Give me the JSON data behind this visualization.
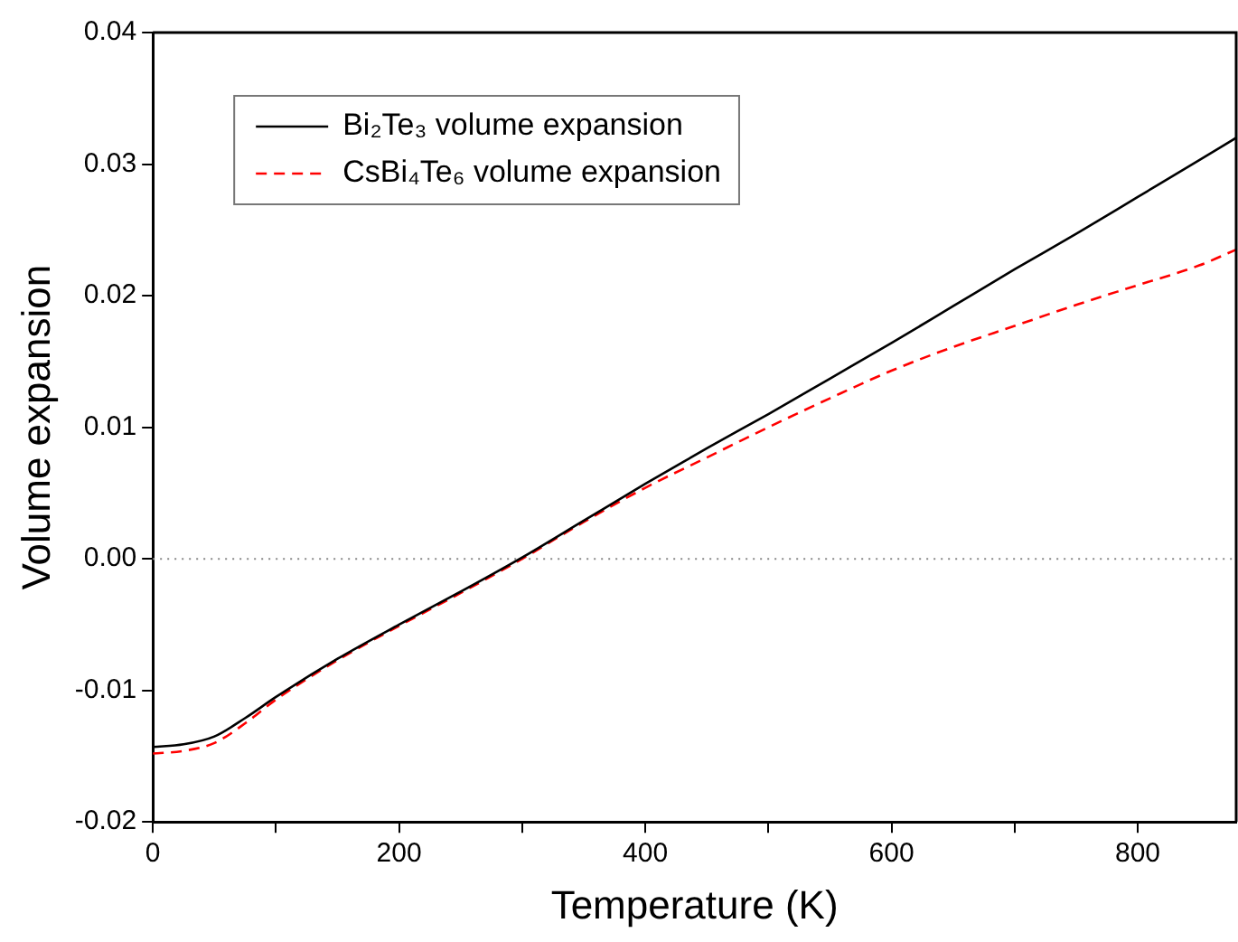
{
  "chart_data": {
    "type": "line",
    "xlabel": "Temperature (K)",
    "ylabel": "Volume expansion",
    "xlim": [
      0,
      880
    ],
    "ylim": [
      -0.02,
      0.04
    ],
    "xticks": [
      0,
      {
        "value": 100,
        "label": null
      },
      200,
      {
        "value": 300,
        "label": null
      },
      400,
      {
        "value": 500,
        "label": null
      },
      600,
      {
        "value": 700,
        "label": null
      },
      800
    ],
    "yticks": [
      {
        "value": -0.02,
        "label": "-0.02"
      },
      {
        "value": -0.01,
        "label": "-0.01"
      },
      {
        "value": 0,
        "label": "0.00"
      },
      {
        "value": 0.01,
        "label": "0.01"
      },
      {
        "value": 0.02,
        "label": "0.02"
      },
      {
        "value": 0.03,
        "label": "0.03"
      },
      {
        "value": 0.04,
        "label": "0.04"
      }
    ],
    "x": [
      0,
      25,
      50,
      75,
      100,
      150,
      200,
      250,
      300,
      350,
      400,
      450,
      500,
      550,
      600,
      650,
      700,
      750,
      800,
      850,
      880
    ],
    "series": [
      {
        "name": "Bi₂Te₃ volume expansion",
        "color": "#000000",
        "line_style": "solid",
        "values": [
          -0.0143,
          -0.0141,
          -0.0135,
          -0.0121,
          -0.0105,
          -0.0076,
          -0.005,
          -0.0025,
          0.0001,
          0.0029,
          0.0057,
          0.0084,
          0.011,
          0.0137,
          0.0164,
          0.0192,
          0.022,
          0.0247,
          0.0275,
          0.0303,
          0.032
        ]
      },
      {
        "name": "CsBi₄Te₆ volume expansion",
        "color": "#ff0000",
        "line_style": "dashed",
        "values": [
          -0.0148,
          -0.0146,
          -0.014,
          -0.0125,
          -0.0107,
          -0.0077,
          -0.0051,
          -0.0026,
          0.0,
          0.0028,
          0.0054,
          0.0077,
          0.01,
          0.0122,
          0.0143,
          0.0161,
          0.0177,
          0.0193,
          0.0208,
          0.0223,
          0.0235
        ]
      }
    ],
    "ref_lines": [
      {
        "axis": "y",
        "value": 0,
        "color": "#888888",
        "line_style": "dotted"
      }
    ],
    "legend": "top left",
    "grid": false,
    "marker": "none"
  }
}
